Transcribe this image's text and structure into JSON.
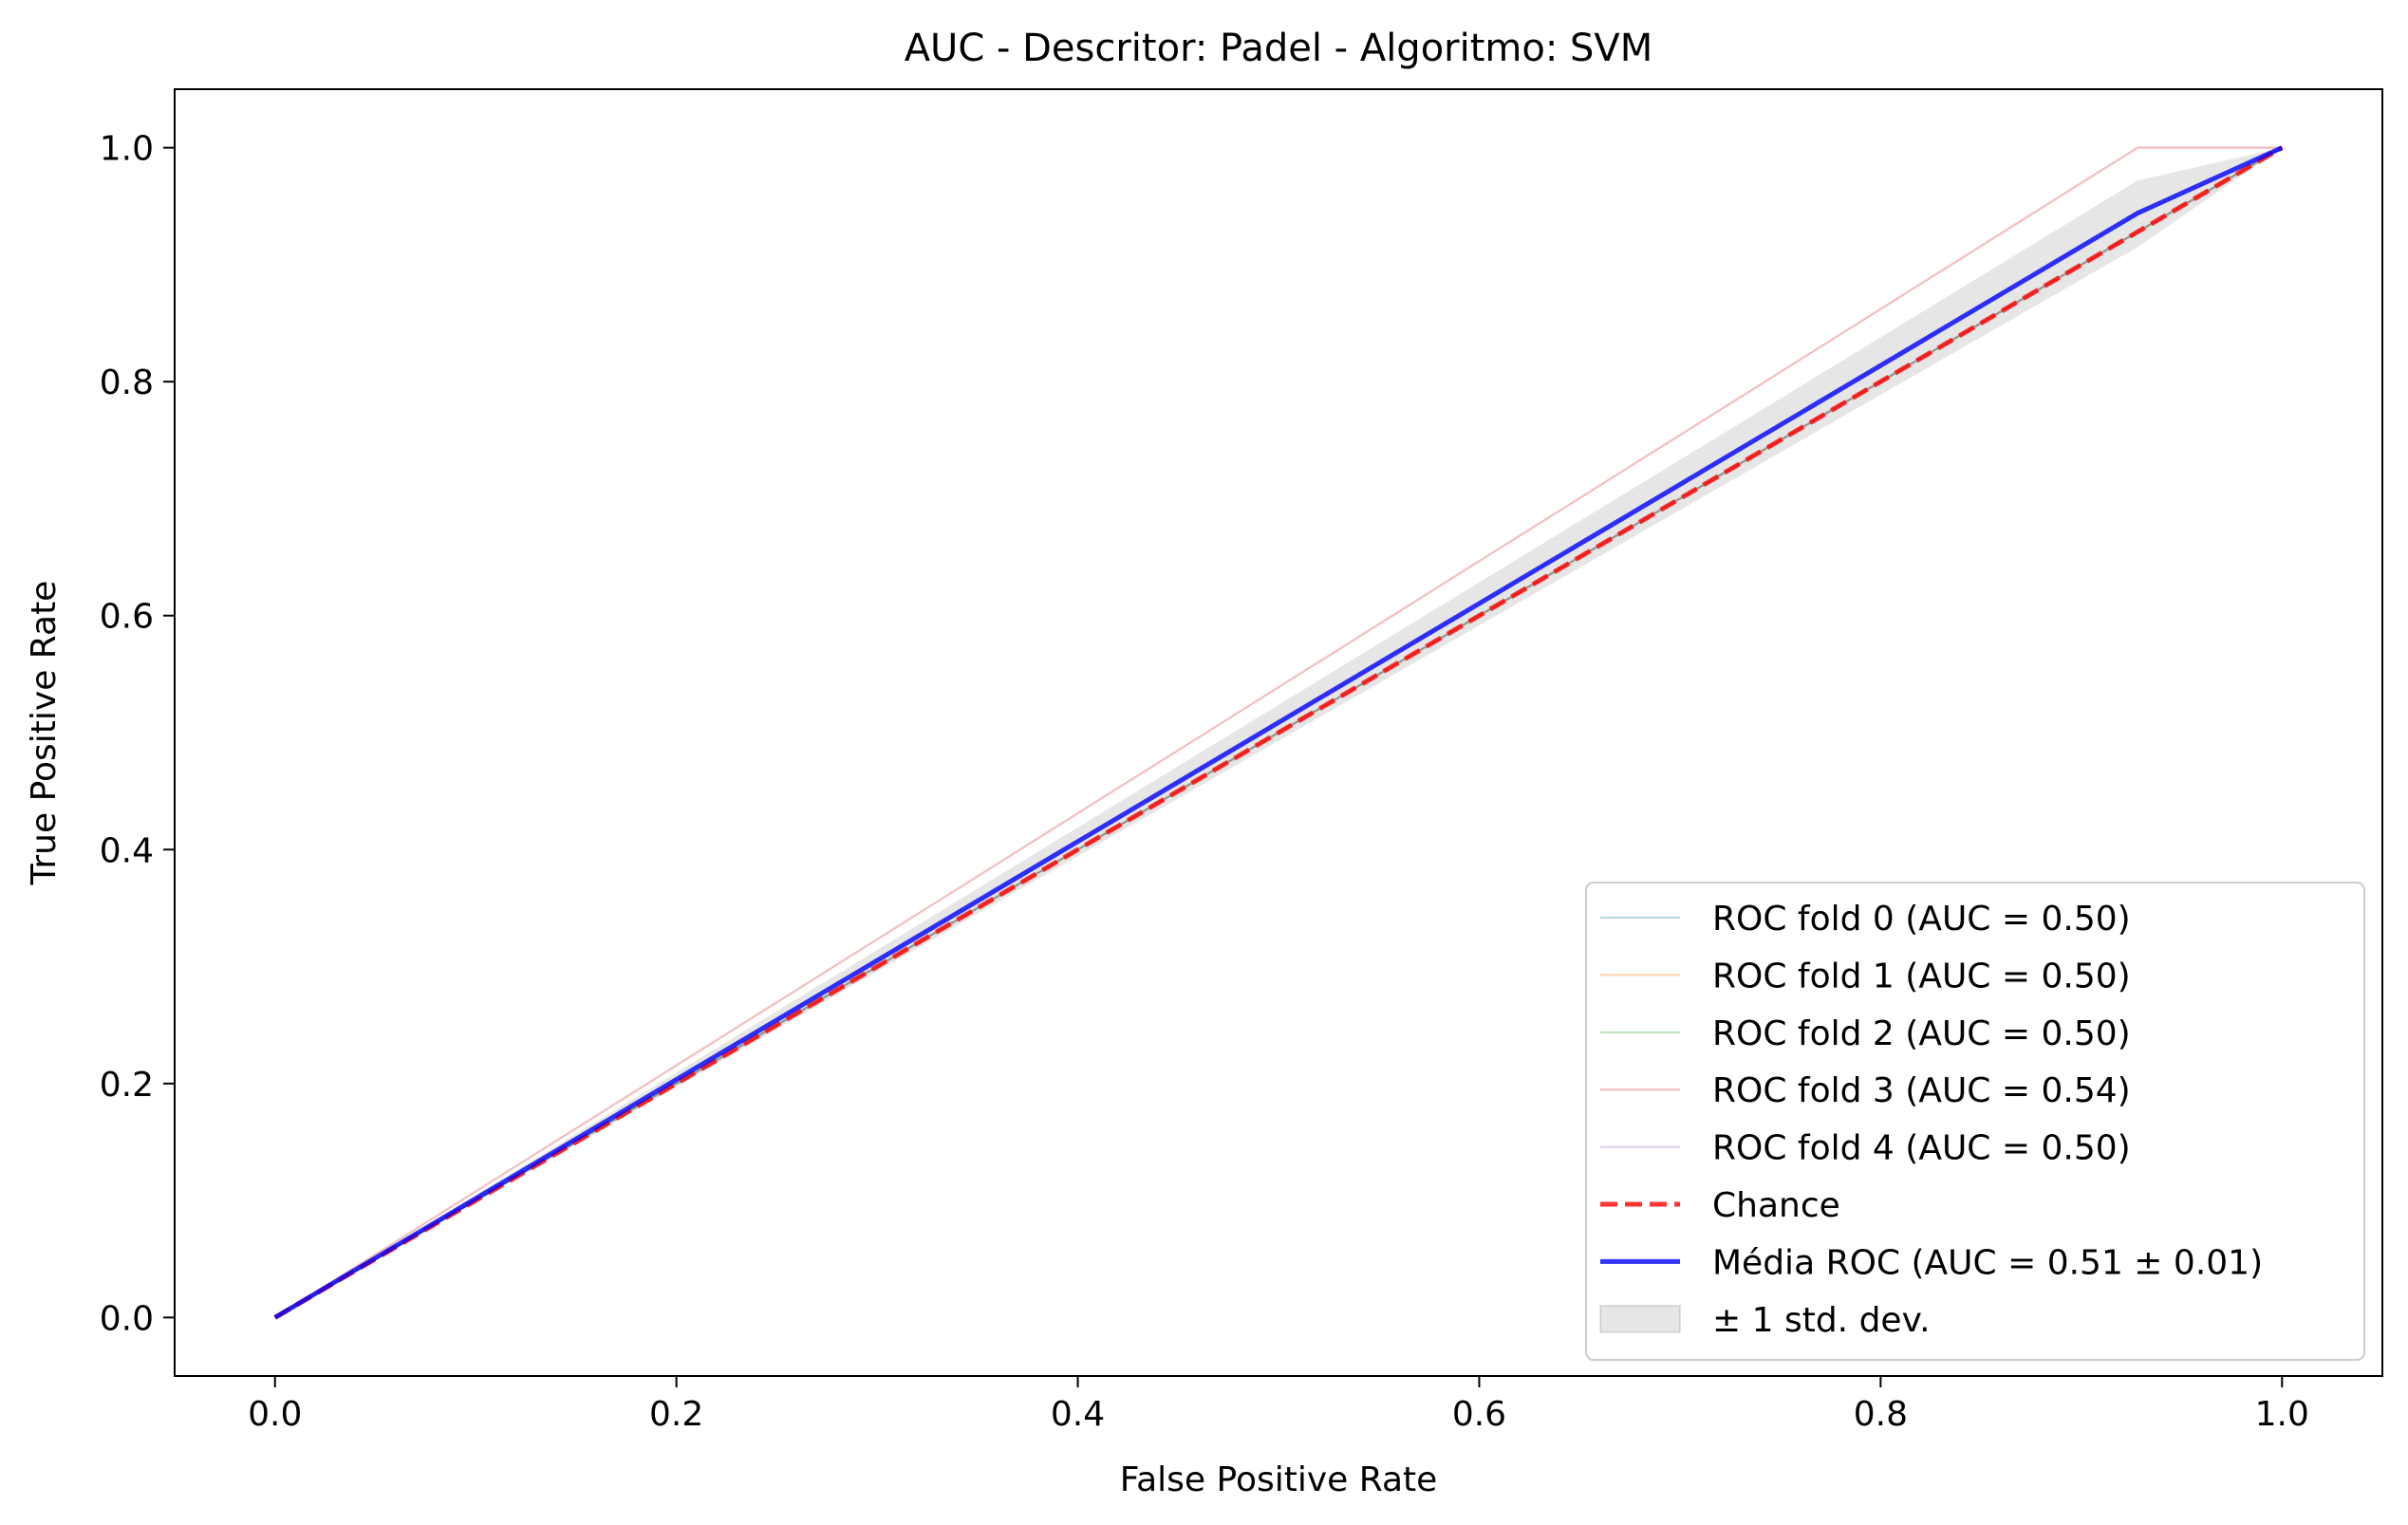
{
  "chart_data": {
    "type": "line",
    "title": "AUC - Descritor: Padel - Algoritmo: SVM",
    "xlabel": "False Positive Rate",
    "ylabel": "True Positive Rate",
    "xlim": [
      -0.05,
      1.05
    ],
    "ylim": [
      -0.05,
      1.05
    ],
    "xticks": [
      0.0,
      0.2,
      0.4,
      0.6,
      0.8,
      1.0
    ],
    "yticks": [
      0.0,
      0.2,
      0.4,
      0.6,
      0.8,
      1.0
    ],
    "xtick_labels": [
      "0.0",
      "0.2",
      "0.4",
      "0.6",
      "0.8",
      "1.0"
    ],
    "ytick_labels": [
      "0.0",
      "0.2",
      "0.4",
      "0.6",
      "0.8",
      "1.0"
    ],
    "grid": false,
    "legend_position": "lower-right",
    "series": [
      {
        "name": "ROC fold 0 (AUC = 0.50)",
        "color": "#1f77b4",
        "style": "thin",
        "x": [
          0,
          1
        ],
        "y": [
          0,
          1
        ]
      },
      {
        "name": "ROC fold 1 (AUC = 0.50)",
        "color": "#ff7f0e",
        "style": "thin",
        "x": [
          0,
          1
        ],
        "y": [
          0,
          1
        ]
      },
      {
        "name": "ROC fold 2 (AUC = 0.50)",
        "color": "#2ca02c",
        "style": "thin",
        "x": [
          0,
          1
        ],
        "y": [
          0,
          1
        ]
      },
      {
        "name": "ROC fold 3 (AUC = 0.54)",
        "color": "#d62728",
        "style": "thin",
        "x": [
          0,
          0.928,
          1
        ],
        "y": [
          0,
          1,
          1
        ]
      },
      {
        "name": "ROC fold 4 (AUC = 0.50)",
        "color": "#9467bd",
        "style": "thin",
        "x": [
          0,
          1
        ],
        "y": [
          0,
          1
        ]
      },
      {
        "name": "Chance",
        "color": "#ff0000",
        "style": "dashed",
        "x": [
          0,
          1
        ],
        "y": [
          0,
          1
        ]
      },
      {
        "name": "Média ROC (AUC = 0.51 ± 0.01)",
        "color": "#0000ff",
        "style": "bold",
        "x": [
          0,
          0.928,
          1
        ],
        "y": [
          0,
          0.944,
          1
        ]
      }
    ],
    "band": {
      "name": "± 1 std. dev.",
      "color": "#808080",
      "x": [
        0,
        0.928,
        1
      ],
      "upper": [
        0,
        0.972,
        1
      ],
      "lower": [
        0,
        0.915,
        1
      ]
    }
  }
}
